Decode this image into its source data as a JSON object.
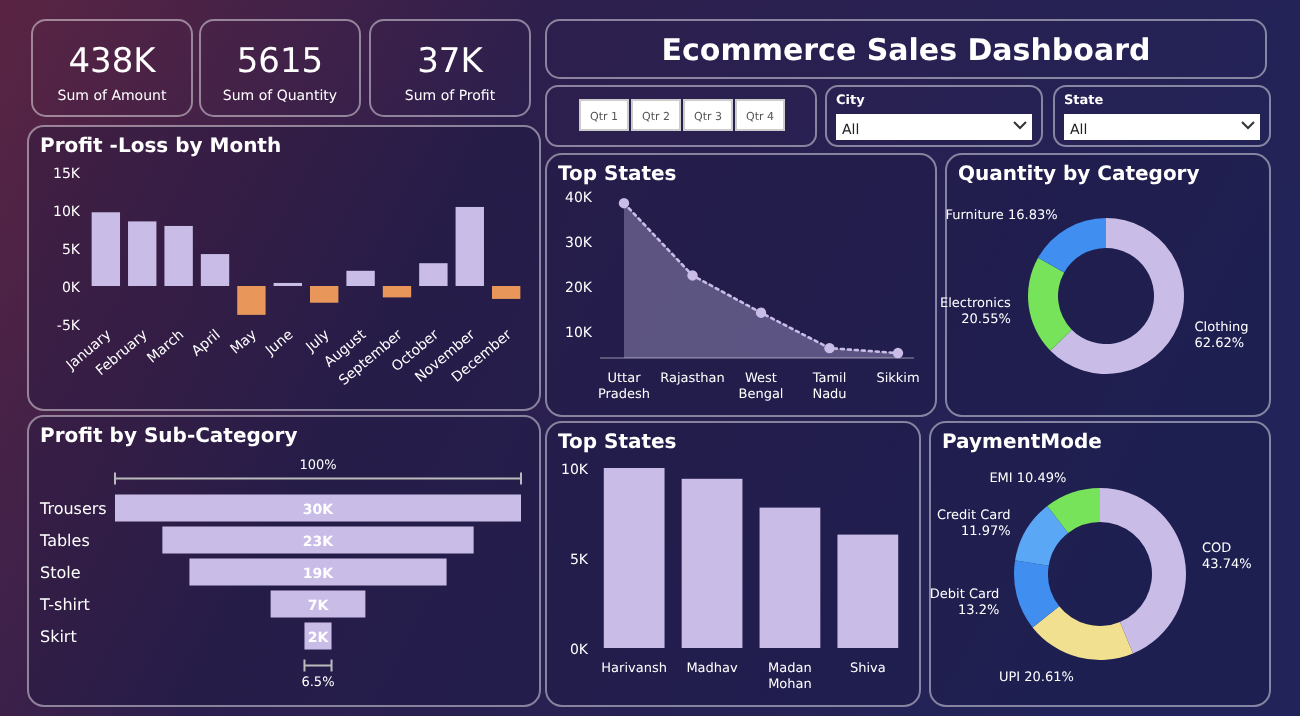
{
  "chart_data": [
    {
      "type": "other",
      "title": "Ecommerce Sales Dashboard",
      "annotations": [
        "438K",
        "Sum of Amount",
        "5615",
        "Sum of Quantity",
        "37K",
        "Sum of Profit",
        "Qtr 1",
        "Qtr 2",
        "Qtr 3",
        "Qtr 4",
        "City",
        "All",
        "State",
        "All"
      ]
    },
    {
      "type": "bar",
      "title": "Profit -Loss by Month",
      "categories": [
        "January",
        "February",
        "March",
        "April",
        "May",
        "June",
        "July",
        "August",
        "September",
        "October",
        "November",
        "December"
      ],
      "values": [
        9700,
        8500,
        7900,
        4200,
        -3800,
        400,
        -2200,
        2000,
        -1500,
        3000,
        10400,
        -1700
      ],
      "colors": [
        "#c9bde8",
        "#c9bde8",
        "#c9bde8",
        "#c9bde8",
        "#e8965a",
        "#c9bde8",
        "#e8965a",
        "#c9bde8",
        "#e8965a",
        "#c9bde8",
        "#c9bde8",
        "#e8965a"
      ],
      "ylim": [
        -5000,
        15000
      ],
      "yticks": [
        {
          "value": -5000,
          "label": "-5K"
        },
        {
          "value": 0,
          "label": "0K"
        },
        {
          "value": 5000,
          "label": "5K"
        },
        {
          "value": 10000,
          "label": "10K"
        },
        {
          "value": 15000,
          "label": "15K"
        }
      ]
    },
    {
      "type": "area",
      "title": "Top States",
      "categories": [
        "Uttar Pradesh",
        "Rajasthan",
        "West Bengal",
        "Tamil Nadu",
        "Sikkim"
      ],
      "values": [
        38400,
        22300,
        14000,
        6100,
        5000
      ],
      "color": "#c9bde8",
      "marker": "circle",
      "line_style": "dotted",
      "ylim": [
        3900,
        40000
      ],
      "yticks": [
        {
          "value": 10000,
          "label": "10K"
        },
        {
          "value": 20000,
          "label": "20K"
        },
        {
          "value": 30000,
          "label": "30K"
        },
        {
          "value": 40000,
          "label": "40K"
        }
      ]
    },
    {
      "type": "donut",
      "title": "Quantity by Category",
      "categories": [
        "Clothing",
        "Electronics",
        "Furniture"
      ],
      "values": [
        62.62,
        20.55,
        16.83
      ],
      "value_labels": [
        "62.62%",
        "20.55%",
        "16.83%"
      ],
      "colors": [
        "#c9bde8",
        "#77e35a",
        "#3f8ef0"
      ]
    },
    {
      "type": "other",
      "title": "Profit by Sub-Category",
      "categories": [
        "Trousers",
        "Tables",
        "Stole",
        "T-shirt",
        "Skirt"
      ],
      "values": [
        30000,
        23000,
        19000,
        7000,
        2000
      ],
      "value_labels": [
        "30K",
        "23K",
        "19K",
        "7K",
        "2K"
      ],
      "color": "#c9bde8",
      "annotations": [
        "100%",
        "6.5%"
      ]
    },
    {
      "type": "bar",
      "title": "Top States",
      "categories": [
        "Harivansh",
        "Madhav",
        "Madan Mohan",
        "Shiva"
      ],
      "values": [
        10000,
        9400,
        7800,
        6300
      ],
      "color": "#c9bde8",
      "ylim": [
        0,
        10000
      ],
      "yticks": [
        {
          "value": 0,
          "label": "0K"
        },
        {
          "value": 5000,
          "label": "5K"
        },
        {
          "value": 10000,
          "label": "10K"
        }
      ]
    },
    {
      "type": "donut",
      "title": "PaymentMode",
      "categories": [
        "COD",
        "UPI",
        "Debit Card",
        "Credit Card",
        "EMI"
      ],
      "values": [
        43.74,
        20.61,
        13.2,
        11.97,
        10.49
      ],
      "value_labels": [
        "43.74%",
        "20.61%",
        "13.2%",
        "11.97%",
        "10.49%"
      ],
      "colors": [
        "#c9bde8",
        "#f0e08f",
        "#3f8ef0",
        "#5aa8f5",
        "#77e35a"
      ]
    }
  ]
}
